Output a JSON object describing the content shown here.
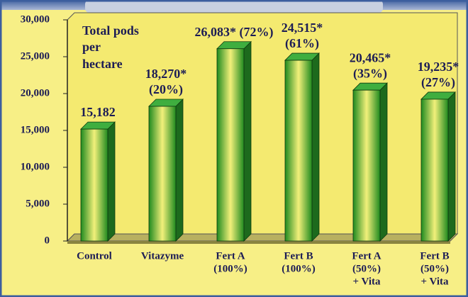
{
  "chart_data": {
    "type": "bar3d",
    "title": [
      "Total pods",
      "per",
      "hectare"
    ],
    "categories": [
      [
        "Control"
      ],
      [
        "Vitazyme"
      ],
      [
        "Fert A",
        "(100%)"
      ],
      [
        "Fert B",
        "(100%)"
      ],
      [
        "Fert A",
        "(50%)",
        "+ Vita"
      ],
      [
        "Fert B",
        "(50%)",
        "+ Vita"
      ]
    ],
    "values": [
      15182,
      18270,
      26083,
      24515,
      20465,
      19235
    ],
    "value_labels": [
      [
        "15,182"
      ],
      [
        "18,270*",
        "(20%)"
      ],
      [
        "26,083* (72%)"
      ],
      [
        "24,515*",
        "(61%)"
      ],
      [
        "20,465*",
        "(35%)"
      ],
      [
        "19,235*",
        "(27%)"
      ]
    ],
    "color": "#2e9a2e",
    "ylim": [
      0,
      30000
    ],
    "yticks": [
      0,
      {
        "value": 5000,
        "label": "5,000"
      },
      {
        "value": 10000,
        "label": "10,000"
      },
      {
        "value": 15000,
        "label": "15,000"
      },
      {
        "value": 20000,
        "label": "20,000"
      },
      {
        "value": 25000,
        "label": "25,000"
      },
      {
        "value": 30000,
        "label": "30,000"
      }
    ],
    "grid": false
  }
}
